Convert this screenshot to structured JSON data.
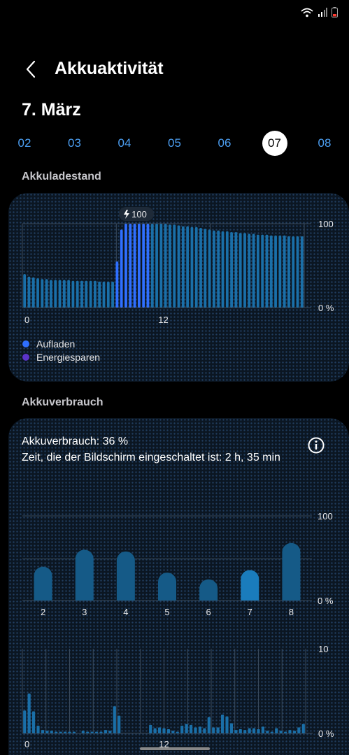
{
  "status_bar": {
    "icons": [
      "wifi-icon",
      "signal-icon",
      "battery-icon"
    ]
  },
  "header": {
    "title": "Akkuaktivität",
    "back_icon": "chevron-left-icon"
  },
  "date_title": "7. März",
  "days": [
    {
      "label": "02",
      "selected": false
    },
    {
      "label": "03",
      "selected": false
    },
    {
      "label": "04",
      "selected": false
    },
    {
      "label": "05",
      "selected": false
    },
    {
      "label": "06",
      "selected": false
    },
    {
      "label": "07",
      "selected": true
    },
    {
      "label": "08",
      "selected": false
    }
  ],
  "battery_level": {
    "section_title": "Akkuladestand",
    "legend": [
      {
        "label": "Aufladen",
        "color": "#2f6fff"
      },
      {
        "label": "Energiesparen",
        "color": "#5b34c9"
      }
    ],
    "colors": {
      "normal": "#1a6fa8",
      "charging": "#2f6fff"
    }
  },
  "battery_usage": {
    "section_title": "Akkuverbrauch",
    "usage_text": "Akkuverbrauch: 36 %",
    "screen_time_text": "Zeit, die der Bildschirm eingeschaltet ist: 2 h, 35 min",
    "info_icon": "info-icon",
    "colors": {
      "normal": "#155a87",
      "highlight": "#1a7cbc"
    }
  },
  "chart_data": [
    {
      "type": "bar",
      "subject": "battery-level",
      "x_tick_labels": [
        "0",
        "12"
      ],
      "y_tick_labels": [
        "100",
        "0 %"
      ],
      "ylim": [
        0,
        100
      ],
      "callout": "100",
      "values": [
        40,
        37,
        36,
        35,
        34,
        34,
        33,
        33,
        33,
        33,
        33,
        32,
        32,
        32,
        32,
        32,
        32,
        31,
        31,
        31,
        31,
        55,
        93,
        100,
        100,
        100,
        100,
        100,
        100,
        100,
        100,
        100,
        100,
        99,
        99,
        98,
        97,
        97,
        96,
        96,
        95,
        94,
        93,
        92,
        92,
        91,
        91,
        90,
        90,
        89,
        89,
        88,
        88,
        87,
        87,
        87,
        86,
        86,
        86,
        86,
        85,
        85,
        85,
        85
      ],
      "charging": [
        false,
        false,
        false,
        false,
        false,
        false,
        false,
        false,
        false,
        false,
        false,
        false,
        false,
        false,
        false,
        false,
        false,
        false,
        false,
        false,
        false,
        true,
        true,
        true,
        true,
        true,
        true,
        true,
        true,
        false,
        false,
        false,
        false,
        false,
        false,
        false,
        false,
        false,
        false,
        false,
        false,
        false,
        false,
        false,
        false,
        false,
        false,
        false,
        false,
        false,
        false,
        false,
        false,
        false,
        false,
        false,
        false,
        false,
        false,
        false,
        false,
        false,
        false,
        false
      ]
    },
    {
      "type": "bar",
      "subject": "daily-usage",
      "categories": [
        "2",
        "3",
        "4",
        "5",
        "6",
        "7",
        "8"
      ],
      "values": [
        40,
        60,
        58,
        33,
        25,
        36,
        68
      ],
      "highlight_index": 5,
      "y_tick_labels": [
        "100",
        "0 %"
      ],
      "ylim": [
        0,
        100
      ]
    },
    {
      "type": "bar",
      "subject": "hourly-usage",
      "x_tick_labels": [
        "0",
        "12"
      ],
      "y_tick_labels": [
        "10",
        "0 %"
      ],
      "ylim": [
        0,
        10
      ],
      "values": [
        2.7,
        4.7,
        2.6,
        0.9,
        0.4,
        0.3,
        0.3,
        0.2,
        0.2,
        0.2,
        0.2,
        0.2,
        0,
        0.3,
        0.2,
        0.2,
        0.2,
        0.2,
        0.4,
        0.3,
        3.2,
        2.1,
        0,
        0,
        0,
        0,
        0,
        0,
        1.0,
        0.6,
        0.7,
        0.6,
        0.5,
        0.3,
        0.2,
        0.9,
        1.1,
        1.0,
        0.7,
        0.8,
        0.6,
        1.9,
        0.7,
        0.7,
        2.2,
        2.0,
        1.2,
        0.4,
        0.5,
        0.4,
        0.6,
        0.6,
        0.5,
        0.8,
        0.3,
        0.2,
        0.6,
        0.3,
        0.2,
        0.4,
        0.3,
        0.7,
        1.1
      ]
    }
  ]
}
